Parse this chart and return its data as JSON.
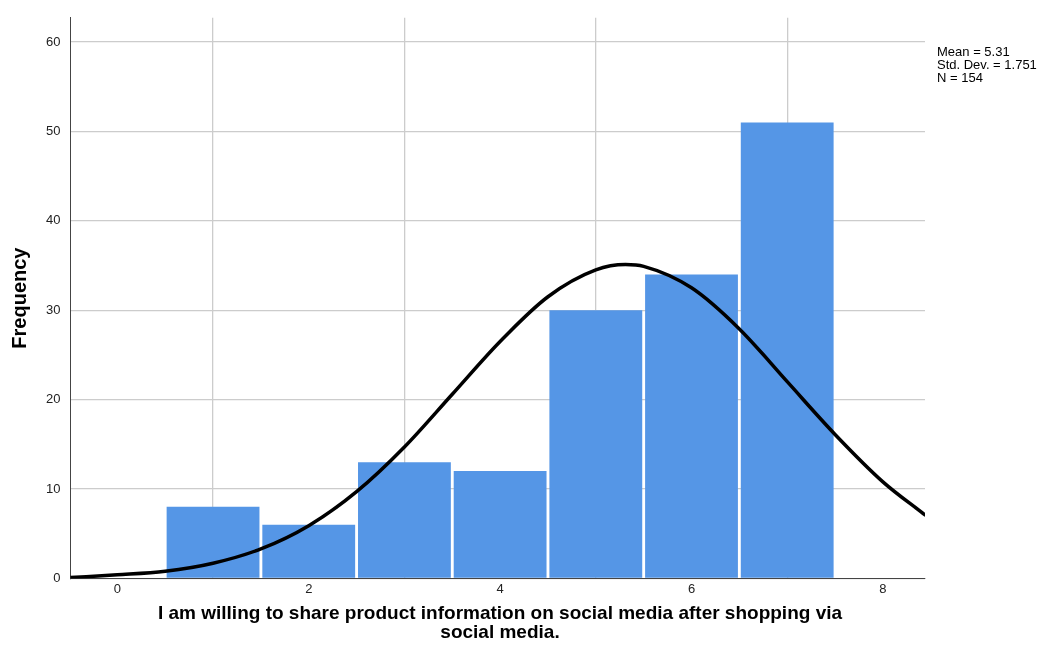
{
  "chart_data": {
    "type": "histogram",
    "xlabel": "I am willing to share product information on social media after shopping via social media.",
    "ylabel": "Frequency",
    "annotations": [
      "Mean = 5.31",
      "Std. Dev. = 1.751",
      "N = 154"
    ],
    "series": [
      {
        "color": "#5596e6",
        "bins": [
          0.5,
          1.5,
          2.5,
          3.5,
          4.5,
          5.5,
          6.5,
          7.5
        ],
        "values": [
          8,
          6,
          13,
          12,
          30,
          34,
          51
        ]
      },
      {
        "type": "line",
        "color": "#000000",
        "x": [
          -0.49,
          0,
          0.5,
          1,
          1.5,
          2,
          2.5,
          3,
          3.5,
          4,
          4.5,
          5,
          5.31,
          5.5,
          6,
          6.5,
          7,
          7.5,
          8,
          8.44
        ],
        "values": [
          0.1,
          0.4,
          0.8,
          1.7,
          3.3,
          5.9,
          9.7,
          14.7,
          20.6,
          26.5,
          31.5,
          34.5,
          35.1,
          34.9,
          32.5,
          27.9,
          22.0,
          16.1,
          10.8,
          7.1
        ]
      }
    ],
    "xlim": [
      -0.49,
      8.44
    ],
    "ylim": [
      0,
      62.7
    ],
    "xticks": [
      0,
      2,
      4,
      6,
      8
    ],
    "yticks": [
      0,
      10,
      20,
      30,
      40,
      50,
      60
    ],
    "grid": true,
    "legend": false,
    "marker": "none"
  }
}
